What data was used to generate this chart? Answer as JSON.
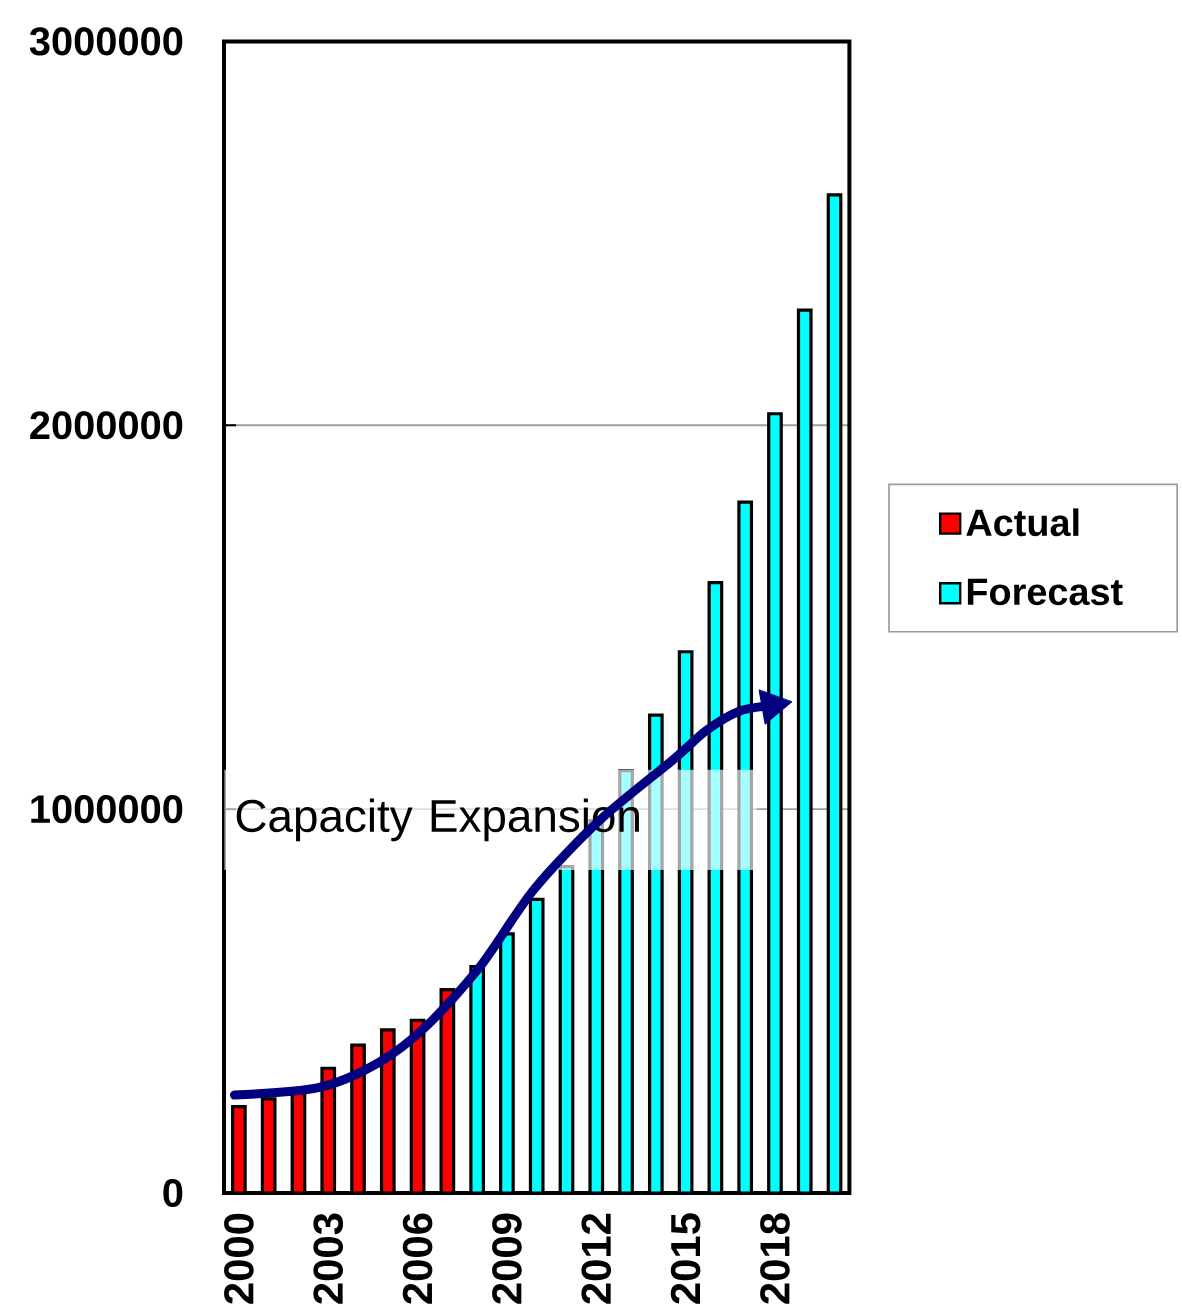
{
  "chart_data": {
    "type": "bar",
    "x": [
      2000,
      2001,
      2002,
      2003,
      2004,
      2005,
      2006,
      2007,
      2008,
      2009,
      2010,
      2011,
      2012,
      2013,
      2014,
      2015,
      2016,
      2017,
      2018,
      2019,
      2020
    ],
    "xlim": [
      1999.5,
      2020.5
    ],
    "xticks": [
      2000,
      2003,
      2006,
      2009,
      2012,
      2015,
      2018
    ],
    "ylim": [
      0,
      3000000
    ],
    "yticks": [
      0,
      1000000,
      2000000,
      3000000
    ],
    "grid": "y",
    "legend": "right",
    "series": [
      {
        "name": "Actual",
        "color": "#ff0000",
        "values": [
          225000,
          245000,
          260000,
          325000,
          385000,
          425000,
          450000,
          530000,
          null,
          null,
          null,
          null,
          null,
          null,
          null,
          null,
          null,
          null,
          null,
          null,
          null
        ]
      },
      {
        "name": "Forecast",
        "color": "#00ffff",
        "values": [
          null,
          null,
          null,
          null,
          null,
          null,
          null,
          null,
          590000,
          675000,
          765000,
          850000,
          970000,
          1100000,
          1245000,
          1410000,
          1590000,
          1800000,
          2030000,
          2300000,
          2600000
        ]
      },
      {
        "type": "line",
        "color": "#000080",
        "x": [
          1999.85,
          2002.7,
          2004.7,
          2006.3,
          2008.1,
          2009.9,
          2012.1,
          2014.6,
          2015.7,
          2016.8,
          2017.9
        ],
        "values": [
          255000,
          275000,
          340000,
          435000,
          590000,
          790000,
          970000,
          1130000,
          1205000,
          1255000,
          1270000
        ]
      }
    ],
    "annotations": [
      "Capacity Expansion"
    ]
  }
}
